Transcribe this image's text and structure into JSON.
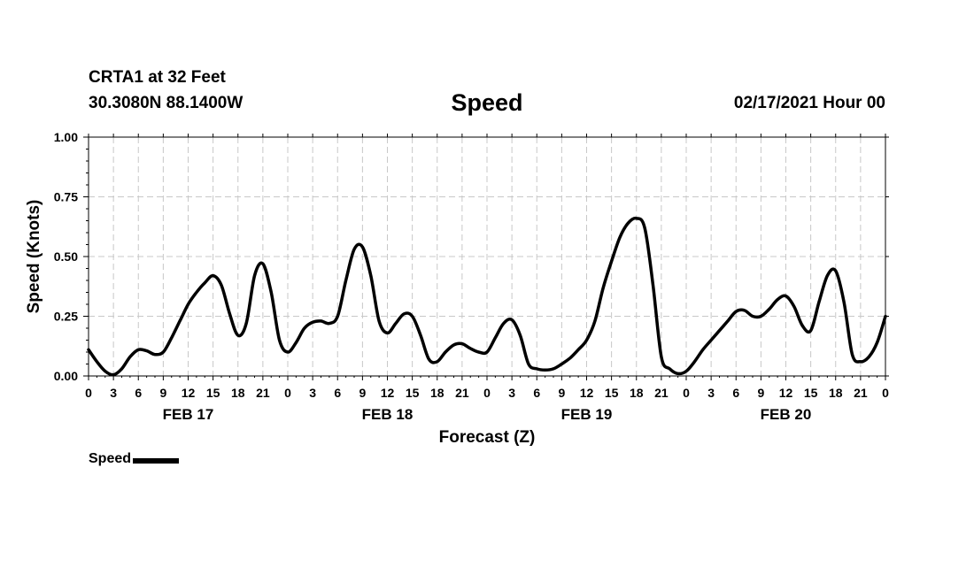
{
  "header": {
    "station": "CRTA1 at 32 Feet",
    "coords": "30.3080N 88.1400W",
    "title": "Speed",
    "datetime": "02/17/2021 Hour 00"
  },
  "legend": {
    "label": "Speed"
  },
  "chart_data": {
    "type": "line",
    "title": "Speed",
    "xlabel": "Forecast (Z)",
    "ylabel": "Speed (Knots)",
    "ylim": [
      0,
      1
    ],
    "yticks": [
      "0.00",
      "0.25",
      "0.50",
      "0.75",
      "1.00"
    ],
    "xticks": [
      "0",
      "3",
      "6",
      "9",
      "12",
      "15",
      "18",
      "21",
      "0",
      "3",
      "6",
      "9",
      "12",
      "15",
      "18",
      "21",
      "0",
      "3",
      "6",
      "9",
      "12",
      "15",
      "18",
      "21",
      "0",
      "3",
      "6",
      "9",
      "12",
      "15",
      "18",
      "21",
      "0"
    ],
    "day_labels": [
      "FEB 17",
      "FEB 18",
      "FEB 19",
      "FEB 20"
    ],
    "grid": true,
    "legend_position": "bottom-left",
    "line_color": "#000000",
    "series": [
      {
        "name": "Speed",
        "points": [
          [
            0,
            0.11
          ],
          [
            1,
            0.06
          ],
          [
            2,
            0.02
          ],
          [
            3,
            0.005
          ],
          [
            4,
            0.03
          ],
          [
            5,
            0.08
          ],
          [
            6,
            0.11
          ],
          [
            7,
            0.105
          ],
          [
            8,
            0.09
          ],
          [
            9,
            0.1
          ],
          [
            10,
            0.16
          ],
          [
            11,
            0.23
          ],
          [
            12,
            0.3
          ],
          [
            13,
            0.35
          ],
          [
            14,
            0.39
          ],
          [
            15,
            0.42
          ],
          [
            16,
            0.38
          ],
          [
            17,
            0.26
          ],
          [
            18,
            0.17
          ],
          [
            19,
            0.22
          ],
          [
            20,
            0.42
          ],
          [
            21,
            0.47
          ],
          [
            22,
            0.35
          ],
          [
            23,
            0.15
          ],
          [
            24,
            0.1
          ],
          [
            25,
            0.14
          ],
          [
            26,
            0.2
          ],
          [
            27,
            0.225
          ],
          [
            28,
            0.23
          ],
          [
            29,
            0.22
          ],
          [
            30,
            0.25
          ],
          [
            31,
            0.4
          ],
          [
            32,
            0.53
          ],
          [
            33,
            0.54
          ],
          [
            34,
            0.42
          ],
          [
            35,
            0.23
          ],
          [
            36,
            0.18
          ],
          [
            37,
            0.22
          ],
          [
            38,
            0.26
          ],
          [
            39,
            0.25
          ],
          [
            40,
            0.17
          ],
          [
            41,
            0.07
          ],
          [
            42,
            0.06
          ],
          [
            43,
            0.1
          ],
          [
            44,
            0.13
          ],
          [
            45,
            0.135
          ],
          [
            46,
            0.115
          ],
          [
            47,
            0.1
          ],
          [
            48,
            0.1
          ],
          [
            49,
            0.16
          ],
          [
            50,
            0.22
          ],
          [
            51,
            0.235
          ],
          [
            52,
            0.17
          ],
          [
            53,
            0.05
          ],
          [
            54,
            0.03
          ],
          [
            55,
            0.025
          ],
          [
            56,
            0.03
          ],
          [
            57,
            0.05
          ],
          [
            58,
            0.075
          ],
          [
            59,
            0.11
          ],
          [
            60,
            0.15
          ],
          [
            61,
            0.23
          ],
          [
            62,
            0.37
          ],
          [
            63,
            0.48
          ],
          [
            64,
            0.58
          ],
          [
            65,
            0.64
          ],
          [
            66,
            0.66
          ],
          [
            67,
            0.62
          ],
          [
            68,
            0.38
          ],
          [
            69,
            0.08
          ],
          [
            70,
            0.03
          ],
          [
            71,
            0.01
          ],
          [
            72,
            0.02
          ],
          [
            73,
            0.06
          ],
          [
            74,
            0.11
          ],
          [
            75,
            0.15
          ],
          [
            76,
            0.19
          ],
          [
            77,
            0.23
          ],
          [
            78,
            0.27
          ],
          [
            79,
            0.275
          ],
          [
            80,
            0.25
          ],
          [
            81,
            0.25
          ],
          [
            82,
            0.28
          ],
          [
            83,
            0.32
          ],
          [
            84,
            0.335
          ],
          [
            85,
            0.29
          ],
          [
            86,
            0.21
          ],
          [
            87,
            0.19
          ],
          [
            88,
            0.31
          ],
          [
            89,
            0.42
          ],
          [
            90,
            0.44
          ],
          [
            91,
            0.31
          ],
          [
            92,
            0.09
          ],
          [
            93,
            0.06
          ],
          [
            94,
            0.08
          ],
          [
            95,
            0.14
          ],
          [
            96,
            0.25
          ]
        ]
      }
    ]
  }
}
